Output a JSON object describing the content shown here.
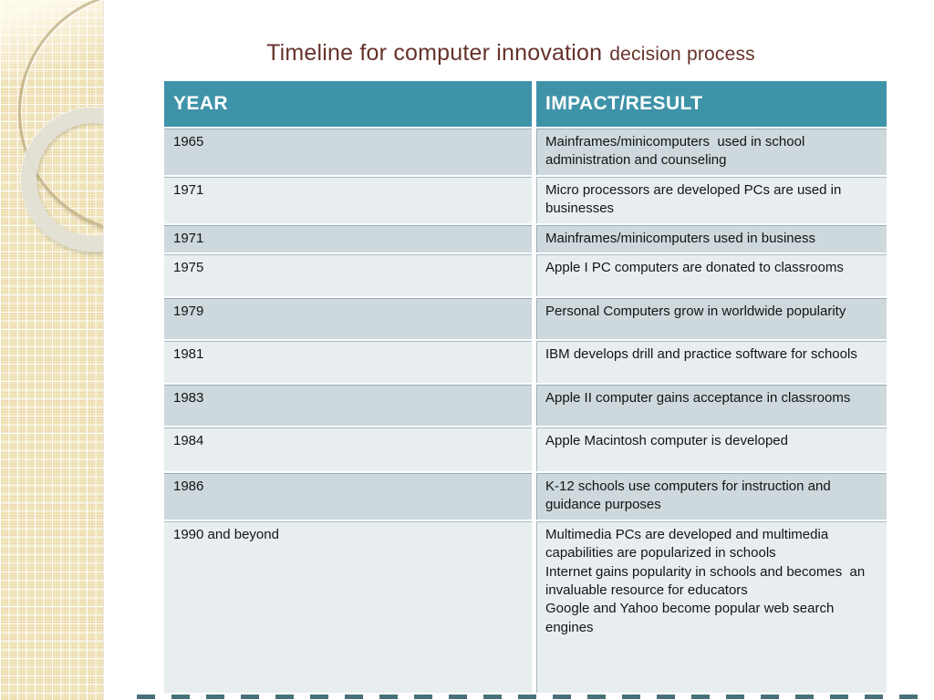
{
  "slide": {
    "title": {
      "main": "Timeline for computer innovation",
      "sub": "decision process"
    },
    "table": {
      "headers": {
        "year": "YEAR",
        "impact": "IMPACT/RESULT"
      },
      "rows": [
        {
          "year": "1965",
          "impact": "Mainframes/minicomputers  used in school administration and counseling"
        },
        {
          "year": "1971",
          "impact": "Micro processors are developed PCs are used in businesses"
        },
        {
          "year": "1971",
          "impact": "Mainframes/minicomputers used in business"
        },
        {
          "year": "1975",
          "impact": "Apple I PC computers are donated to classrooms"
        },
        {
          "year": "1979",
          "impact": "Personal Computers grow in worldwide popularity"
        },
        {
          "year": "1981",
          "impact": "IBM develops drill and practice software for schools"
        },
        {
          "year": "1983",
          "impact": "Apple II computer gains acceptance in classrooms"
        },
        {
          "year": "1984",
          "impact": "Apple Macintosh computer is developed"
        },
        {
          "year": "1986",
          "impact": "K-12 schools use computers for instruction and guidance purposes"
        },
        {
          "year": "1990 and beyond",
          "impact": "Multimedia PCs are developed and multimedia capabilities are popularized in schools\nInternet gains popularity in schools and becomes  an invaluable resource for educators\nGoogle and Yahoo become popular web search engines"
        }
      ]
    },
    "colors": {
      "header_bg": "#3f93a9",
      "header_text": "#ffffff",
      "row_dark": "#cdd9dc",
      "row_light": "#e8eef0",
      "title_text": "#66322b",
      "sidebar_tan": "#ecdcab",
      "bottom_dash": "#2f5d66",
      "cell_text": "#141414"
    }
  }
}
